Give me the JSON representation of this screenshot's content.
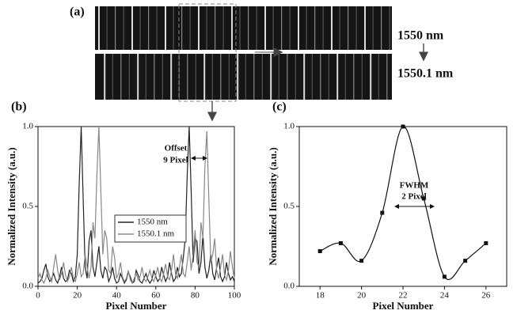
{
  "figure": {
    "label": "(a)",
    "top_label": "1550 nm",
    "bottom_label": "1550.1 nm"
  },
  "chart_data": [
    {
      "type": "line",
      "panel_label": "(b)",
      "xlabel": "Pixel Number",
      "ylabel": "Normalized Intensity (a.u.)",
      "x": [
        0,
        1,
        2,
        3,
        4,
        5,
        6,
        7,
        8,
        9,
        10,
        11,
        12,
        13,
        14,
        15,
        16,
        17,
        18,
        19,
        20,
        21,
        22,
        23,
        24,
        25,
        26,
        27,
        28,
        29,
        30,
        31,
        32,
        33,
        34,
        35,
        36,
        37,
        38,
        39,
        40,
        41,
        42,
        43,
        44,
        45,
        46,
        47,
        48,
        49,
        50,
        51,
        52,
        53,
        54,
        55,
        56,
        57,
        58,
        59,
        60,
        61,
        62,
        63,
        64,
        65,
        66,
        67,
        68,
        69,
        70,
        71,
        72,
        73,
        74,
        75,
        76,
        77,
        78,
        79,
        80,
        81,
        82,
        83,
        84,
        85,
        86,
        87,
        88,
        89,
        90,
        91,
        92,
        93,
        94,
        95,
        96,
        97,
        98,
        99,
        100
      ],
      "series": [
        {
          "name": "1550 nm",
          "color": "#222222",
          "values": [
            0.02,
            0.03,
            0.05,
            0.1,
            0.14,
            0.06,
            0.03,
            0.05,
            0.08,
            0.04,
            0.02,
            0.06,
            0.12,
            0.05,
            0.03,
            0.04,
            0.1,
            0.08,
            0.03,
            0.06,
            0.2,
            0.65,
            1.0,
            0.55,
            0.12,
            0.05,
            0.28,
            0.35,
            0.12,
            0.06,
            0.15,
            0.25,
            0.1,
            0.05,
            0.12,
            0.1,
            0.03,
            0.06,
            0.12,
            0.05,
            0.02,
            0.03,
            0.08,
            0.05,
            0.02,
            0.04,
            0.09,
            0.06,
            0.02,
            0.03,
            0.1,
            0.07,
            0.03,
            0.02,
            0.05,
            0.08,
            0.04,
            0.02,
            0.04,
            0.1,
            0.06,
            0.03,
            0.05,
            0.12,
            0.07,
            0.03,
            0.06,
            0.15,
            0.08,
            0.03,
            0.05,
            0.12,
            0.06,
            0.08,
            0.18,
            0.3,
            0.7,
            1.0,
            0.6,
            0.15,
            0.3,
            0.28,
            0.08,
            0.15,
            0.32,
            0.12,
            0.05,
            0.1,
            0.2,
            0.08,
            0.04,
            0.12,
            0.18,
            0.06,
            0.03,
            0.06,
            0.15,
            0.08,
            0.04,
            0.06,
            0.03
          ]
        },
        {
          "name": "1550.1 nm",
          "color": "#888888",
          "values": [
            0.05,
            0.08,
            0.04,
            0.02,
            0.05,
            0.1,
            0.06,
            0.03,
            0.12,
            0.2,
            0.1,
            0.04,
            0.08,
            0.15,
            0.07,
            0.03,
            0.06,
            0.12,
            0.05,
            0.03,
            0.08,
            0.15,
            0.06,
            0.08,
            0.2,
            0.12,
            0.05,
            0.12,
            0.4,
            0.3,
            0.7,
            1.0,
            0.6,
            0.2,
            0.35,
            0.3,
            0.1,
            0.08,
            0.25,
            0.18,
            0.05,
            0.08,
            0.15,
            0.06,
            0.03,
            0.05,
            0.1,
            0.04,
            0.02,
            0.05,
            0.08,
            0.04,
            0.06,
            0.12,
            0.05,
            0.03,
            0.06,
            0.1,
            0.05,
            0.03,
            0.07,
            0.12,
            0.05,
            0.03,
            0.08,
            0.14,
            0.06,
            0.04,
            0.1,
            0.2,
            0.08,
            0.05,
            0.12,
            0.2,
            0.08,
            0.06,
            0.15,
            0.25,
            0.1,
            0.2,
            0.35,
            0.15,
            0.12,
            0.4,
            0.3,
            0.75,
            0.97,
            0.55,
            0.15,
            0.2,
            0.3,
            0.1,
            0.05,
            0.12,
            0.2,
            0.07,
            0.04,
            0.1,
            0.22,
            0.12,
            0.05
          ]
        }
      ],
      "xlim": [
        0,
        100
      ],
      "xticks": [
        0,
        20,
        40,
        60,
        80,
        100
      ],
      "ylim": [
        0,
        1
      ],
      "yticks": [
        {
          "value": 0,
          "label": "0.0"
        },
        {
          "value": 0.5,
          "label": "0.5"
        },
        {
          "value": 1,
          "label": "1.0"
        }
      ],
      "annotations": [
        "Offset",
        "9 Pixel"
      ]
    },
    {
      "type": "line",
      "smooth": true,
      "marker": "square",
      "panel_label": "(c)",
      "xlabel": "Pixel Number",
      "ylabel": "Normalized Intensity (a.u.)",
      "x": [
        18,
        19,
        20,
        21,
        22,
        23,
        24,
        25,
        26
      ],
      "series": [
        {
          "color": "#111111",
          "values": [
            0.22,
            0.27,
            0.16,
            0.46,
            1.0,
            0.55,
            0.06,
            0.16,
            0.27
          ]
        }
      ],
      "xlim": [
        17,
        27
      ],
      "xticks": [
        18,
        20,
        22,
        24,
        26
      ],
      "ylim": [
        0,
        1
      ],
      "yticks": [
        {
          "value": 0,
          "label": "0.0"
        },
        {
          "value": 0.5,
          "label": "0.5"
        },
        {
          "value": 1,
          "label": "1.0"
        }
      ],
      "annotations": [
        "FWHM",
        "2 Pixel"
      ]
    }
  ]
}
